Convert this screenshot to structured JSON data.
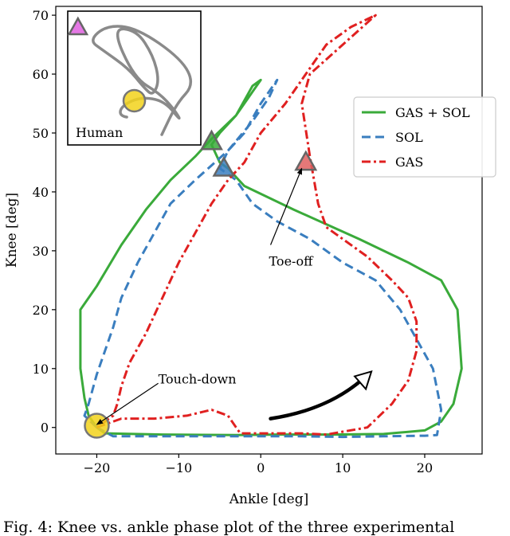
{
  "chart_data": {
    "type": "line",
    "title": "",
    "xlabel": "Ankle [deg]",
    "ylabel": "Knee [deg]",
    "xlim": [
      -25,
      27
    ],
    "ylim": [
      -4.5,
      71.5
    ],
    "xticks": [
      -20,
      -10,
      0,
      10,
      20
    ],
    "yticks": [
      0,
      10,
      20,
      30,
      40,
      50,
      60,
      70
    ],
    "tick_labels_x": [
      "−20",
      "−10",
      "0",
      "10",
      "20"
    ],
    "tick_labels_y": [
      "0",
      "10",
      "20",
      "30",
      "40",
      "50",
      "60",
      "70"
    ],
    "legend_position": "upper-right",
    "series": [
      {
        "name": "GAS + SOL",
        "color": "#3aaa3a",
        "style": "solid",
        "points": [
          [
            -20,
            0
          ],
          [
            -19,
            -1
          ],
          [
            -12,
            -1.2
          ],
          [
            -3,
            -1.3
          ],
          [
            2,
            -1.2
          ],
          [
            9,
            -1.2
          ],
          [
            15,
            -1.1
          ],
          [
            20,
            -0.5
          ],
          [
            22,
            1
          ],
          [
            23.5,
            4
          ],
          [
            24.5,
            10
          ],
          [
            24,
            20
          ],
          [
            22,
            25
          ],
          [
            18,
            28
          ],
          [
            12,
            32
          ],
          [
            4,
            37
          ],
          [
            -2,
            41
          ],
          [
            -4,
            44
          ],
          [
            -5,
            45
          ],
          [
            -6,
            48
          ],
          [
            -5,
            50
          ],
          [
            -3,
            53
          ],
          [
            -1,
            57
          ],
          [
            0,
            59
          ],
          [
            -1,
            58
          ],
          [
            -3,
            53
          ],
          [
            -6,
            49
          ],
          [
            -8,
            46
          ],
          [
            -11,
            42
          ],
          [
            -14,
            37
          ],
          [
            -17,
            31
          ],
          [
            -20,
            24
          ],
          [
            -21,
            22
          ],
          [
            -22,
            20
          ],
          [
            -22,
            10
          ],
          [
            -21.5,
            5
          ],
          [
            -21,
            2
          ],
          [
            -20,
            0
          ]
        ]
      },
      {
        "name": "SOL",
        "color": "#3a7ebf",
        "style": "dashed",
        "points": [
          [
            -20,
            0
          ],
          [
            -18,
            -1.5
          ],
          [
            -10,
            -1.5
          ],
          [
            -2,
            -1.5
          ],
          [
            5,
            -1.5
          ],
          [
            10,
            -1.6
          ],
          [
            15,
            -1.5
          ],
          [
            20,
            -1.4
          ],
          [
            21.5,
            -1.3
          ],
          [
            22,
            3
          ],
          [
            21,
            10
          ],
          [
            19,
            15
          ],
          [
            17,
            20
          ],
          [
            14,
            25
          ],
          [
            10,
            28
          ],
          [
            6,
            32
          ],
          [
            2,
            35
          ],
          [
            -1,
            38
          ],
          [
            -2,
            40
          ],
          [
            -3,
            42
          ],
          [
            -5,
            44
          ],
          [
            -4,
            47
          ],
          [
            -2,
            50
          ],
          [
            0,
            55
          ],
          [
            2,
            59
          ],
          [
            1,
            56
          ],
          [
            -1,
            52
          ],
          [
            -4,
            47
          ],
          [
            -8,
            42
          ],
          [
            -11,
            38
          ],
          [
            -13,
            33
          ],
          [
            -15,
            28
          ],
          [
            -17,
            22
          ],
          [
            -18,
            17
          ],
          [
            -19,
            13
          ],
          [
            -20,
            9
          ],
          [
            -21,
            4
          ],
          [
            -21.5,
            2
          ],
          [
            -20,
            0
          ]
        ]
      },
      {
        "name": "GAS",
        "color": "#e02020",
        "style": "dashdot",
        "points": [
          [
            -20,
            0
          ],
          [
            -17,
            1.5
          ],
          [
            -13,
            1.5
          ],
          [
            -9,
            2
          ],
          [
            -6,
            3
          ],
          [
            -4,
            2
          ],
          [
            -3,
            0
          ],
          [
            -2.5,
            -1
          ],
          [
            0,
            -1
          ],
          [
            5,
            -1
          ],
          [
            8,
            -1.2
          ],
          [
            13,
            0
          ],
          [
            16,
            4
          ],
          [
            18,
            8
          ],
          [
            19,
            13
          ],
          [
            19,
            18
          ],
          [
            18,
            22
          ],
          [
            16,
            25
          ],
          [
            13,
            29
          ],
          [
            10,
            32
          ],
          [
            8,
            34
          ],
          [
            7,
            38
          ],
          [
            6.5,
            42
          ],
          [
            6,
            46
          ],
          [
            5,
            55
          ],
          [
            6,
            60
          ],
          [
            10,
            65
          ],
          [
            14,
            70
          ],
          [
            11,
            68
          ],
          [
            8,
            65
          ],
          [
            6,
            61
          ],
          [
            3,
            55
          ],
          [
            0,
            50
          ],
          [
            -2,
            45
          ],
          [
            -4,
            42
          ],
          [
            -6,
            38
          ],
          [
            -8,
            33
          ],
          [
            -10,
            28
          ],
          [
            -12,
            22
          ],
          [
            -14,
            16
          ],
          [
            -16,
            11
          ],
          [
            -17,
            7
          ],
          [
            -17.5,
            4
          ],
          [
            -18,
            2
          ],
          [
            -19,
            1
          ],
          [
            -20,
            0
          ]
        ]
      }
    ],
    "markers": [
      {
        "name": "touchdown-marker",
        "x": -20,
        "y": 0.3,
        "shape": "circle",
        "color": "#f2d21b"
      },
      {
        "name": "toeoff-gassol-marker",
        "x": -6,
        "y": 48.5,
        "shape": "triangle",
        "color": "#3aaa3a"
      },
      {
        "name": "toeoff-sol-marker",
        "x": -4.5,
        "y": 44,
        "shape": "triangle",
        "color": "#3a7ebf"
      },
      {
        "name": "toeoff-gas-marker",
        "x": 5.5,
        "y": 45,
        "shape": "triangle",
        "color": "#e06060"
      }
    ],
    "annotations": [
      {
        "name": "touchdown-annotation",
        "text": "Touch-down",
        "text_x": -12.5,
        "text_y": 7.5,
        "arrow_from": [
          -12.5,
          7.5
        ],
        "arrow_to": [
          -20,
          0.5
        ]
      },
      {
        "name": "toeoff-annotation",
        "text": "Toe-off",
        "text_x": 1,
        "text_y": 27.5,
        "arrow_from": [
          1.2,
          31
        ],
        "arrow_to": [
          5,
          44
        ]
      }
    ],
    "direction_arrow": {
      "points": [
        [
          1.2,
          1.5
        ],
        [
          6,
          2.5
        ],
        [
          10,
          5
        ],
        [
          13.5,
          9.5
        ]
      ],
      "color": "#000000"
    },
    "inset": {
      "label": "Human",
      "xlim": [
        0,
        1
      ],
      "ylim": [
        0,
        1
      ],
      "trajectory": [
        [
          0.72,
          0.05
        ],
        [
          0.84,
          0.3
        ],
        [
          0.98,
          0.45
        ],
        [
          0.88,
          0.65
        ],
        [
          0.52,
          0.9
        ],
        [
          0.28,
          0.92
        ],
        [
          0.14,
          0.8
        ],
        [
          0.25,
          0.72
        ],
        [
          0.45,
          0.58
        ],
        [
          0.58,
          0.42
        ],
        [
          0.65,
          0.36
        ],
        [
          0.7,
          0.48
        ],
        [
          0.65,
          0.68
        ],
        [
          0.52,
          0.88
        ],
        [
          0.32,
          0.9
        ],
        [
          0.5,
          0.5
        ],
        [
          0.7,
          0.38
        ],
        [
          0.82,
          0.25
        ],
        [
          0.88,
          0.15
        ],
        [
          0.74,
          0.32
        ],
        [
          0.55,
          0.35
        ],
        [
          0.4,
          0.28
        ],
        [
          0.38,
          0.2
        ],
        [
          0.5,
          0.18
        ]
      ],
      "markers": [
        {
          "name": "inset-touchdown-marker",
          "x": 0.5,
          "y": 0.32,
          "shape": "circle",
          "color": "#f2d21b"
        },
        {
          "name": "inset-toeoff-marker",
          "x": 0.05,
          "y": 0.9,
          "shape": "triangle",
          "color": "#e060e0"
        }
      ]
    }
  },
  "caption": "Fig. 4: Knee vs. ankle phase plot of the three experimental"
}
